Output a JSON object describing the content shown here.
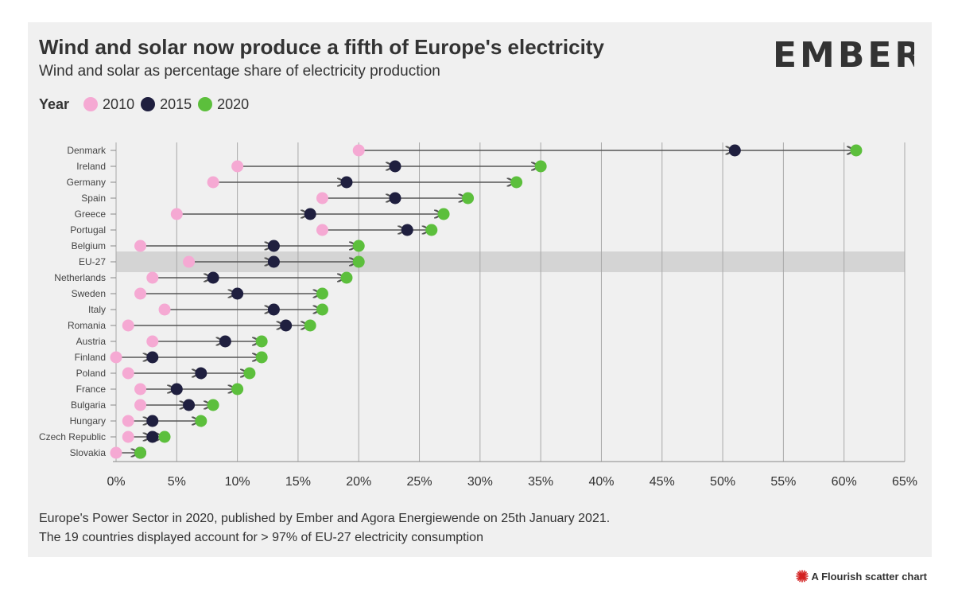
{
  "header": {
    "title": "Wind and solar now produce a fifth of Europe's electricity",
    "subtitle": "Wind and solar as percentage share of electricity production",
    "logo_text": "EMBER"
  },
  "legend": {
    "title": "Year",
    "items": [
      {
        "label": "2010",
        "color": "#f5a9d3"
      },
      {
        "label": "2015",
        "color": "#1f1f3f"
      },
      {
        "label": "2020",
        "color": "#5cbf3c"
      }
    ]
  },
  "footer": {
    "source": "Europe's Power Sector in 2020, published by Ember and Agora Energiewende on 25th January 2021.",
    "note": "The 19 countries displayed account for > 97% of EU-27 electricity consumption"
  },
  "credit": {
    "label": "A Flourish scatter chart"
  },
  "chart_data": {
    "type": "scatter",
    "x_axis": {
      "range": [
        0,
        65
      ],
      "ticks": [
        0,
        5,
        10,
        15,
        20,
        25,
        30,
        35,
        40,
        45,
        50,
        55,
        60,
        65
      ],
      "tick_suffix": "%"
    },
    "grid": true,
    "highlight_category": "EU-27",
    "categories": [
      "Denmark",
      "Ireland",
      "Germany",
      "Spain",
      "Greece",
      "Portugal",
      "Belgium",
      "EU-27",
      "Netherlands",
      "Sweden",
      "Italy",
      "Romania",
      "Austria",
      "Finland",
      "Poland",
      "France",
      "Bulgaria",
      "Hungary",
      "Czech Republic",
      "Slovakia"
    ],
    "series": [
      {
        "name": "2010",
        "values": [
          20,
          10,
          8,
          17,
          5,
          17,
          2,
          6,
          3,
          2,
          4,
          1,
          3,
          0,
          1,
          2,
          2,
          1,
          1,
          0
        ]
      },
      {
        "name": "2015",
        "values": [
          51,
          23,
          19,
          23,
          16,
          24,
          13,
          13,
          8,
          10,
          13,
          14,
          9,
          3,
          7,
          5,
          6,
          3,
          3,
          2
        ]
      },
      {
        "name": "2020",
        "values": [
          61,
          35,
          33,
          29,
          27,
          26,
          20,
          20,
          19,
          17,
          17,
          16,
          12,
          12,
          11,
          10,
          8,
          7,
          4,
          2
        ]
      }
    ]
  }
}
